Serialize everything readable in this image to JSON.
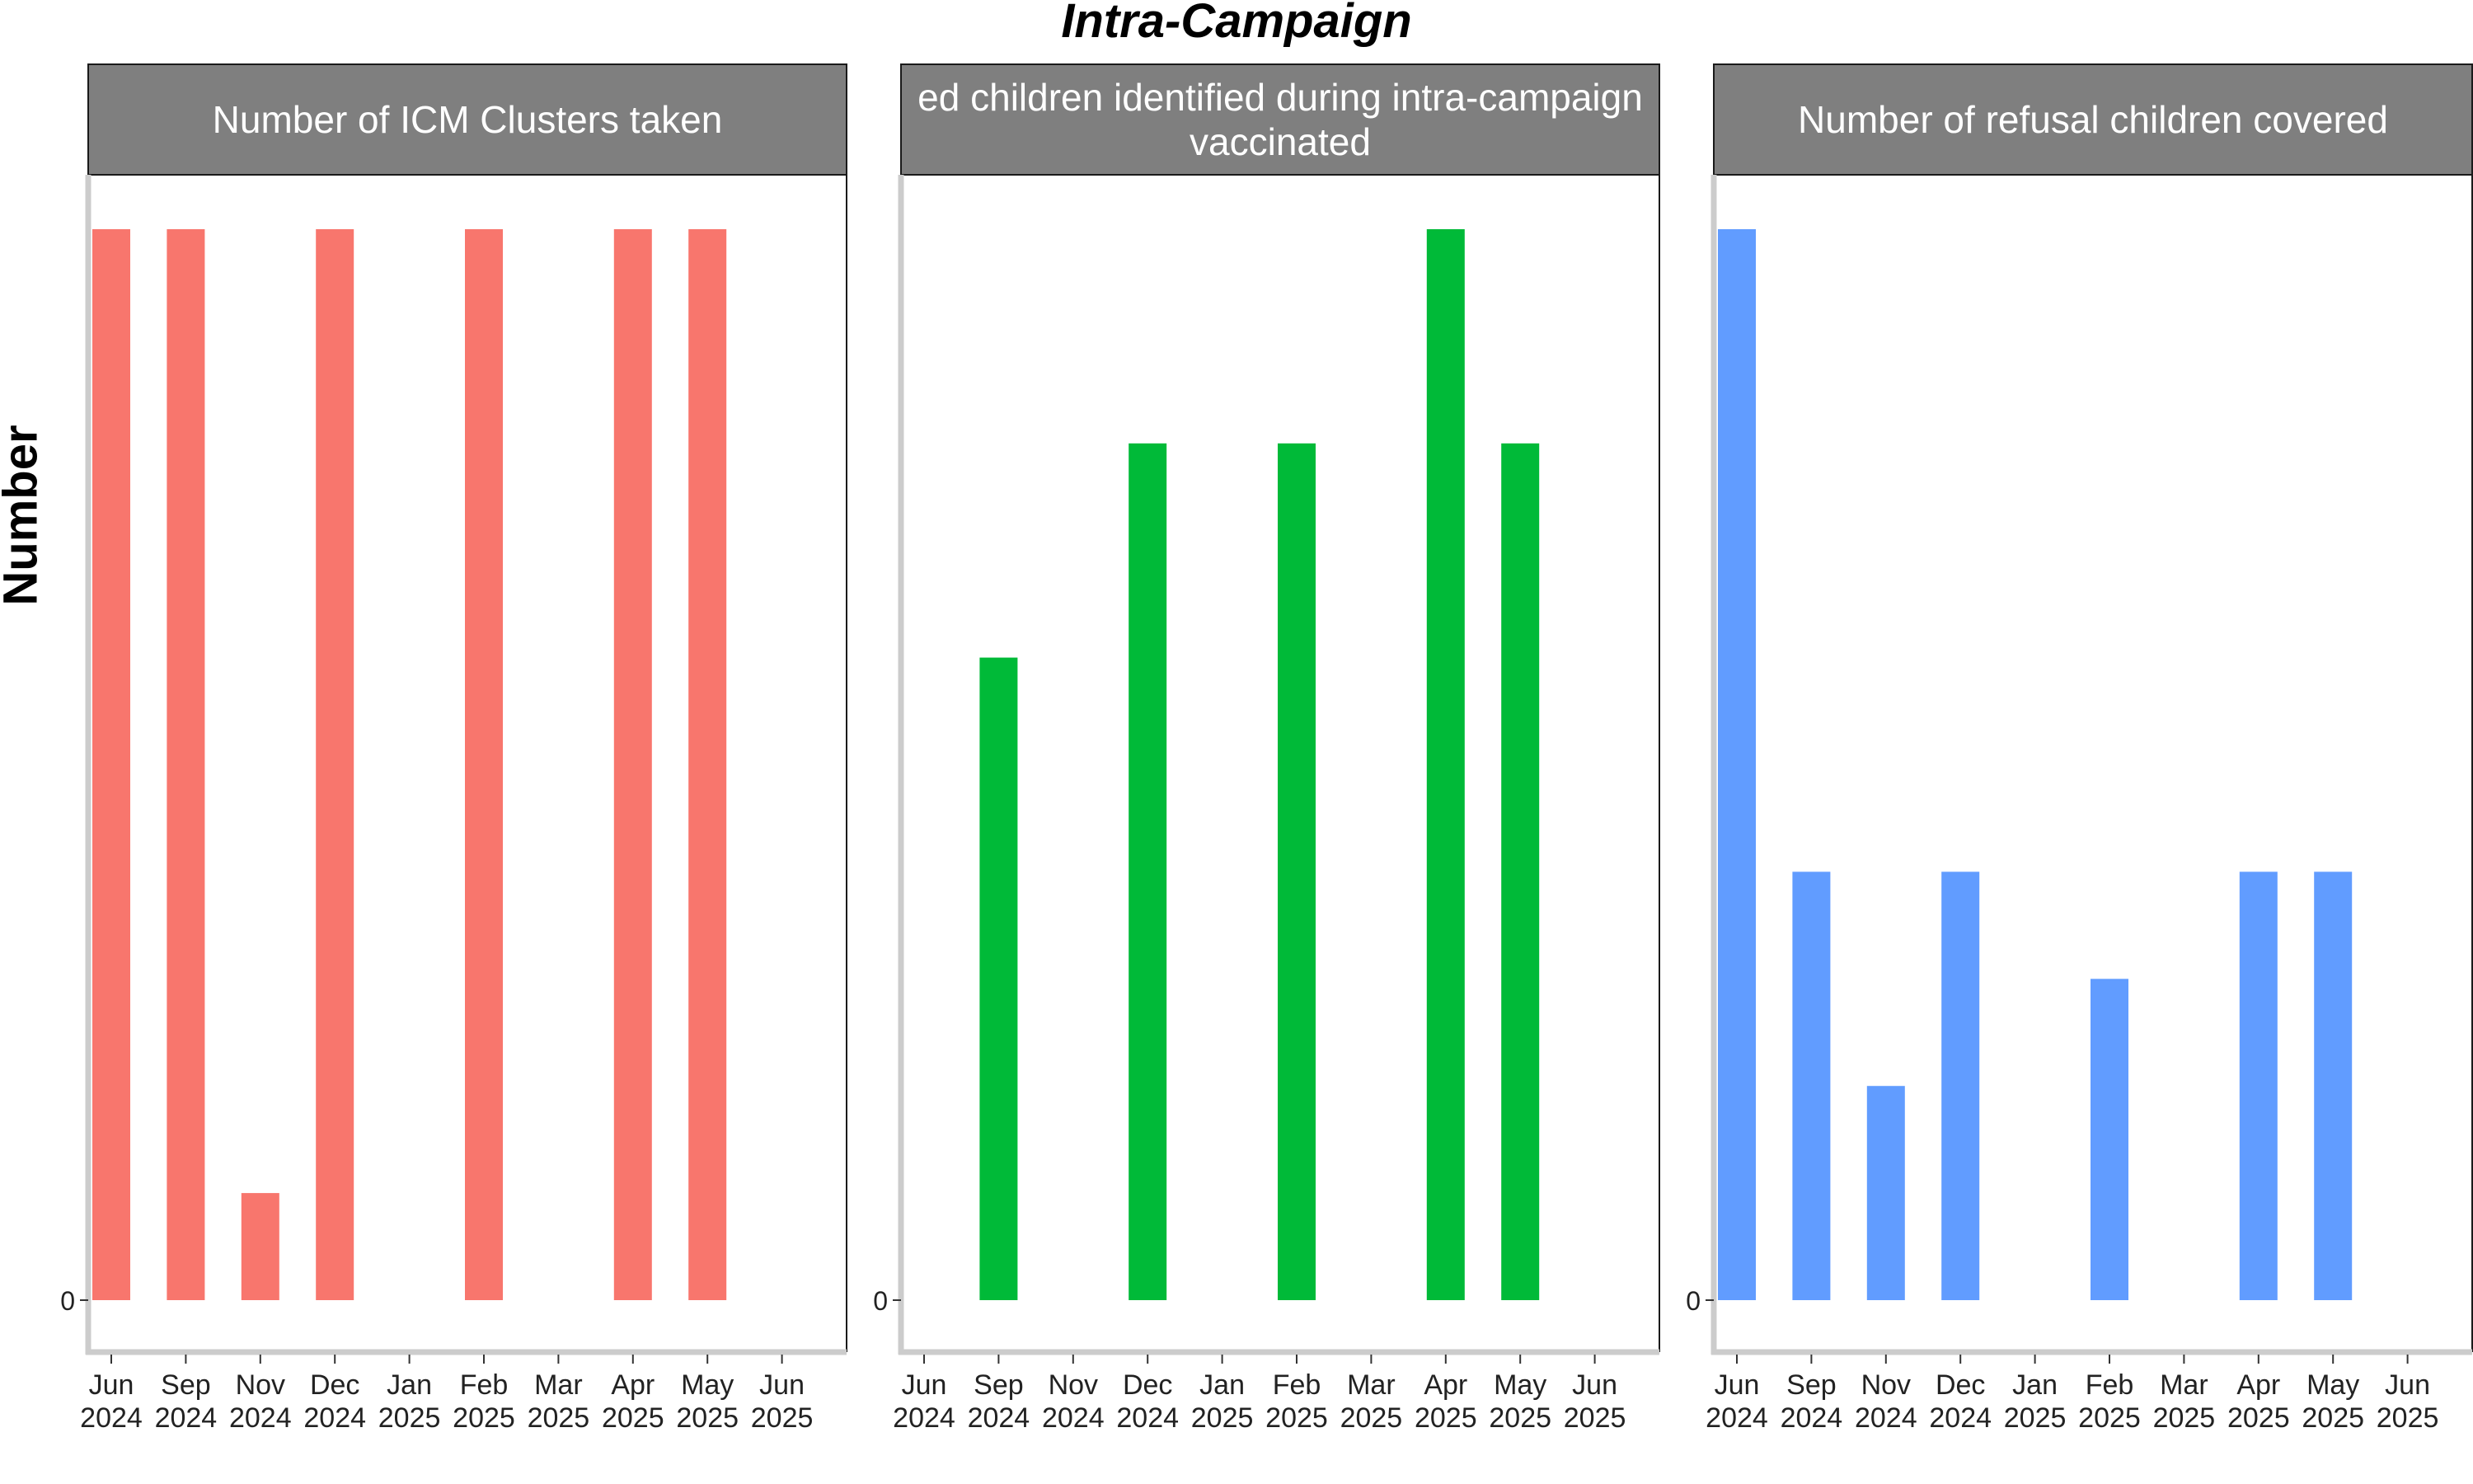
{
  "title": "Intra-Campaign",
  "ylabel": "Number",
  "chart_data": [
    {
      "type": "bar",
      "title": "Number of ICM Clusters taken",
      "color": "#F8766D",
      "categories": [
        "Jun 2024",
        "Sep 2024",
        "Nov 2024",
        "Dec 2024",
        "Jan 2025",
        "Feb 2025",
        "Mar 2025",
        "Apr 2025",
        "May 2025",
        "Jun 2025"
      ],
      "values": [
        10,
        10,
        1,
        10,
        0,
        10,
        0,
        10,
        10,
        0
      ],
      "ytick_labels": [
        "0"
      ],
      "ylim": [
        0,
        10.5
      ]
    },
    {
      "type": "bar",
      "title": "Number of missed children identified during intra-campaign vaccinated",
      "title_lines": [
        "ed children identified during intra-campaign",
        "vaccinated"
      ],
      "color": "#00BA38",
      "categories": [
        "Jun 2024",
        "Sep 2024",
        "Nov 2024",
        "Dec 2024",
        "Jan 2025",
        "Feb 2025",
        "Mar 2025",
        "Apr 2025",
        "May 2025",
        "Jun 2025"
      ],
      "values": [
        0,
        3,
        0,
        4,
        0,
        4,
        0,
        5,
        4,
        0
      ],
      "ytick_labels": [
        "0"
      ],
      "ylim": [
        0,
        5.25
      ]
    },
    {
      "type": "bar",
      "title": "Number of refusal children covered",
      "color": "#619CFF",
      "categories": [
        "Jun 2024",
        "Sep 2024",
        "Nov 2024",
        "Dec 2024",
        "Jan 2025",
        "Feb 2025",
        "Mar 2025",
        "Apr 2025",
        "May 2025",
        "Jun 2025"
      ],
      "values": [
        10,
        4,
        2,
        4,
        0,
        3,
        0,
        4,
        4,
        0
      ],
      "ytick_labels": [
        "0"
      ],
      "ylim": [
        0,
        10.5
      ]
    }
  ]
}
